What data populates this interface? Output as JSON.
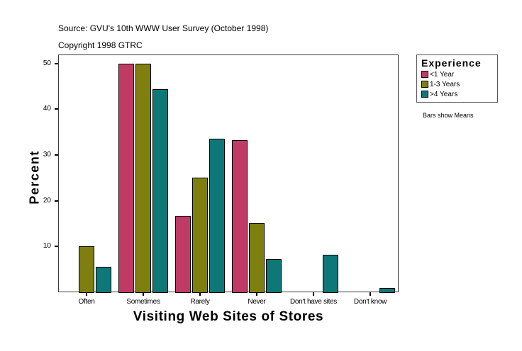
{
  "header": {
    "source": "Source: GVU's 10th WWW User Survey (October 1998)",
    "copyright": "Copyright 1998 GTRC"
  },
  "legend": {
    "title": "Experience",
    "items": [
      {
        "label": "<1 Year",
        "color": "#c03a66"
      },
      {
        "label": "1-3 Years",
        "color": "#7f7f10"
      },
      {
        "label": ">4 Years",
        "color": "#0e7878"
      }
    ]
  },
  "note": "Bars show Means",
  "chart_data": {
    "type": "bar",
    "title": "",
    "xlabel": "Visiting Web Sites of Stores",
    "ylabel": "Percent",
    "ylim": [
      0,
      52
    ],
    "yticks": [
      10,
      20,
      30,
      40,
      50
    ],
    "grid": false,
    "legend_position": "right",
    "legend_title": "Experience",
    "categories": [
      "Often",
      "Sometimes",
      "Rarely",
      "Never",
      "Don't have sites",
      "Don't know"
    ],
    "series": [
      {
        "name": "<1 Year",
        "color": "#c03a66",
        "values": [
          0,
          50,
          16.7,
          33.3,
          0,
          0
        ]
      },
      {
        "name": "1-3 Years",
        "color": "#7f7f10",
        "values": [
          10,
          50,
          25,
          15.1,
          0,
          0
        ]
      },
      {
        "name": ">4 Years",
        "color": "#0e7878",
        "values": [
          5.5,
          44.4,
          33.6,
          7.3,
          8.2,
          1.0
        ]
      }
    ]
  }
}
